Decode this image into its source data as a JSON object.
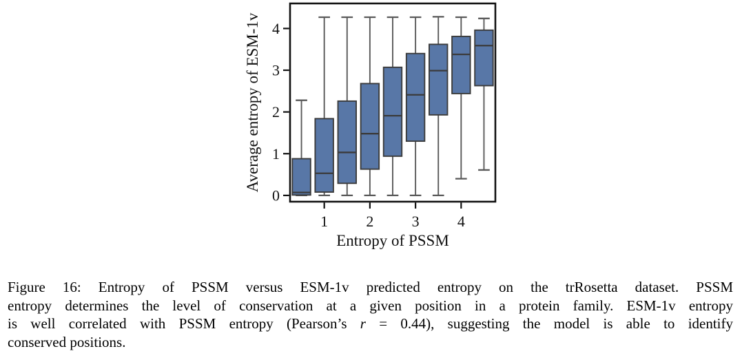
{
  "figure": {
    "caption": {
      "line1": "Figure 16: Entropy of PSSM versus ESM-1v predicted entropy on the trRosetta dataset. PSSM",
      "line2": "entropy determines the level of conservation at a given position in a protein family. ESM-1v entropy",
      "line3_pre": "is well correlated with PSSM entropy (Pearson’s ",
      "line3_math_var": "r",
      "line3_post": " = 0.44), suggesting the model is able to identify",
      "line4": "conserved positions."
    }
  },
  "chart_data": {
    "type": "boxplot",
    "title": "",
    "xlabel": "Entropy of PSSM",
    "ylabel": "Average entropy of ESM-1v",
    "xlim": [
      0.25,
      4.75
    ],
    "ylim": [
      -0.15,
      4.6
    ],
    "xticks": [
      1,
      2,
      3,
      4
    ],
    "yticks": [
      0,
      1,
      2,
      3,
      4
    ],
    "grid": false,
    "legend": "none",
    "box_width": 0.4,
    "colors": {
      "box_fill": "#5877a7",
      "box_edge": "#3b3b3b",
      "whisker": "#595959",
      "axis": "#111111"
    },
    "boxes": [
      {
        "x": 0.5,
        "whisker_low": 0.0,
        "q1": 0.01,
        "median": 0.07,
        "q3": 0.88,
        "whisker_high": 2.28
      },
      {
        "x": 1.0,
        "whisker_low": 0.0,
        "q1": 0.08,
        "median": 0.53,
        "q3": 1.84,
        "whisker_high": 4.27
      },
      {
        "x": 1.5,
        "whisker_low": 0.0,
        "q1": 0.29,
        "median": 1.03,
        "q3": 2.26,
        "whisker_high": 4.27
      },
      {
        "x": 2.0,
        "whisker_low": 0.0,
        "q1": 0.63,
        "median": 1.48,
        "q3": 2.68,
        "whisker_high": 4.27
      },
      {
        "x": 2.5,
        "whisker_low": 0.0,
        "q1": 0.94,
        "median": 1.91,
        "q3": 3.07,
        "whisker_high": 4.27
      },
      {
        "x": 3.0,
        "whisker_low": 0.0,
        "q1": 1.3,
        "median": 2.41,
        "q3": 3.4,
        "whisker_high": 4.27
      },
      {
        "x": 3.5,
        "whisker_low": 0.0,
        "q1": 1.93,
        "median": 2.99,
        "q3": 3.62,
        "whisker_high": 4.28
      },
      {
        "x": 4.0,
        "whisker_low": 0.4,
        "q1": 2.44,
        "median": 3.38,
        "q3": 3.81,
        "whisker_high": 4.27
      },
      {
        "x": 4.5,
        "whisker_low": 0.61,
        "q1": 2.63,
        "median": 3.59,
        "q3": 3.96,
        "whisker_high": 4.24
      }
    ]
  }
}
